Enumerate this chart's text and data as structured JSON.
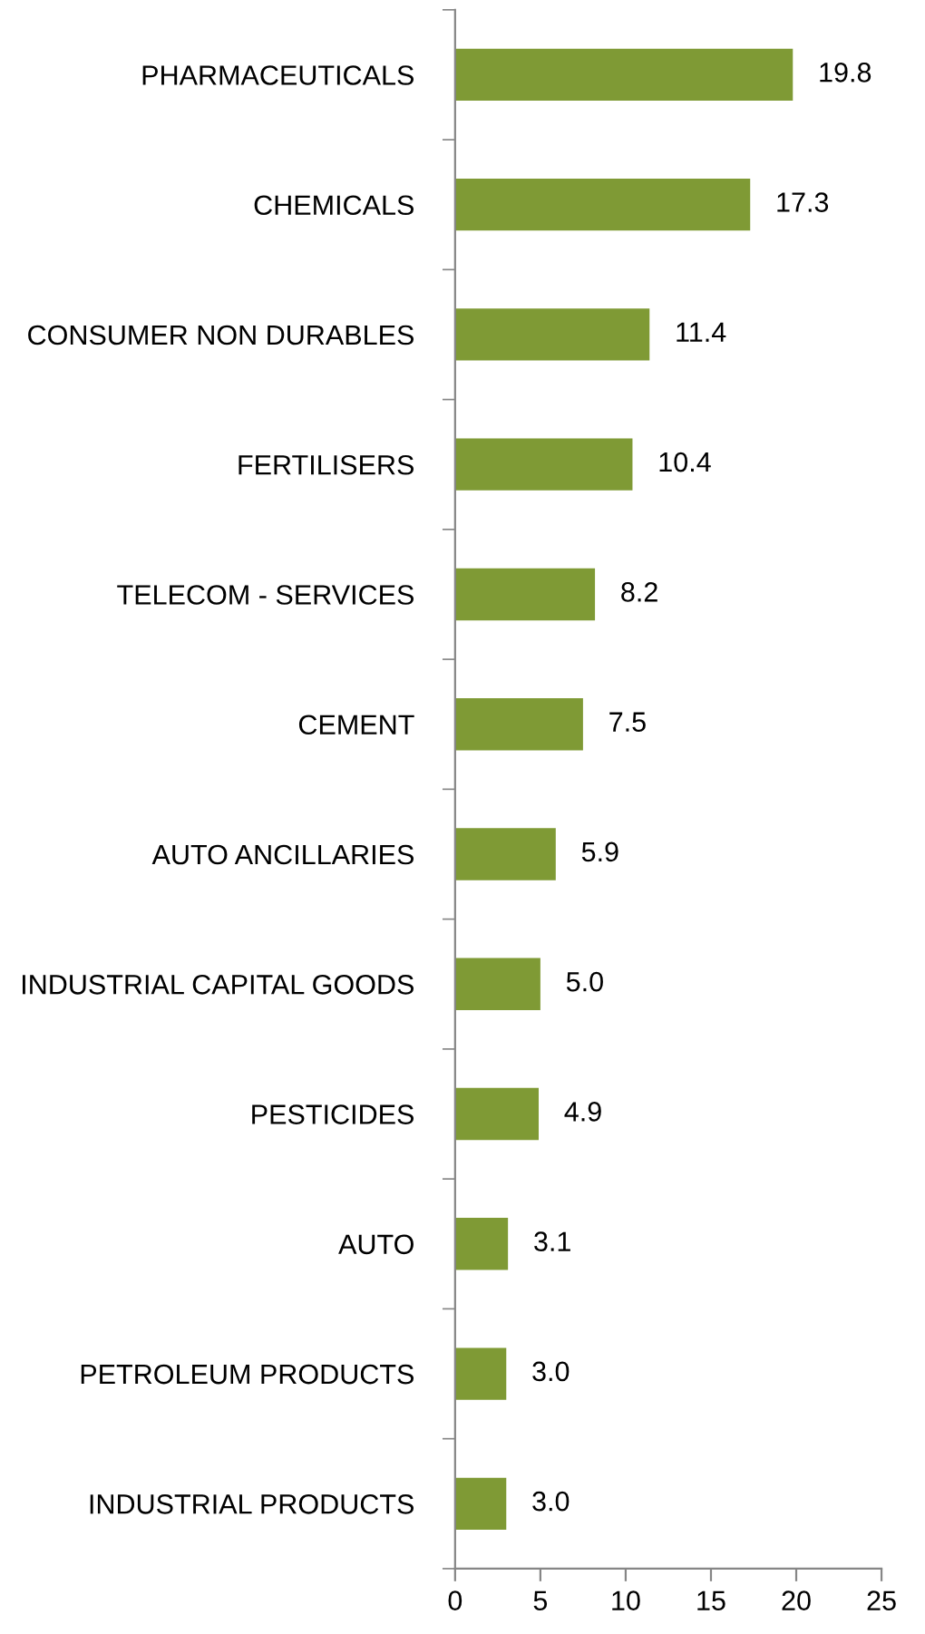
{
  "chart_data": {
    "type": "bar",
    "orientation": "horizontal",
    "categories": [
      "PHARMACEUTICALS",
      "CHEMICALS",
      "CONSUMER NON DURABLES",
      "FERTILISERS",
      "TELECOM - SERVICES",
      "CEMENT",
      "AUTO ANCILLARIES",
      "INDUSTRIAL CAPITAL GOODS",
      "PESTICIDES",
      "AUTO",
      "PETROLEUM PRODUCTS",
      "INDUSTRIAL PRODUCTS"
    ],
    "values": [
      19.8,
      17.3,
      11.4,
      10.4,
      8.2,
      7.5,
      5.9,
      5.0,
      4.9,
      3.1,
      3.0,
      3.0
    ],
    "value_labels": [
      "19.8",
      "17.3",
      "11.4",
      "10.4",
      "8.2",
      "7.5",
      "5.9",
      "5.0",
      "4.9",
      "3.1",
      "3.0",
      "3.0"
    ],
    "color": "#7f9a35",
    "xlim": [
      0,
      25
    ],
    "xticks": [
      0,
      5,
      10,
      15,
      20,
      25
    ],
    "grid": false,
    "legend": false
  }
}
